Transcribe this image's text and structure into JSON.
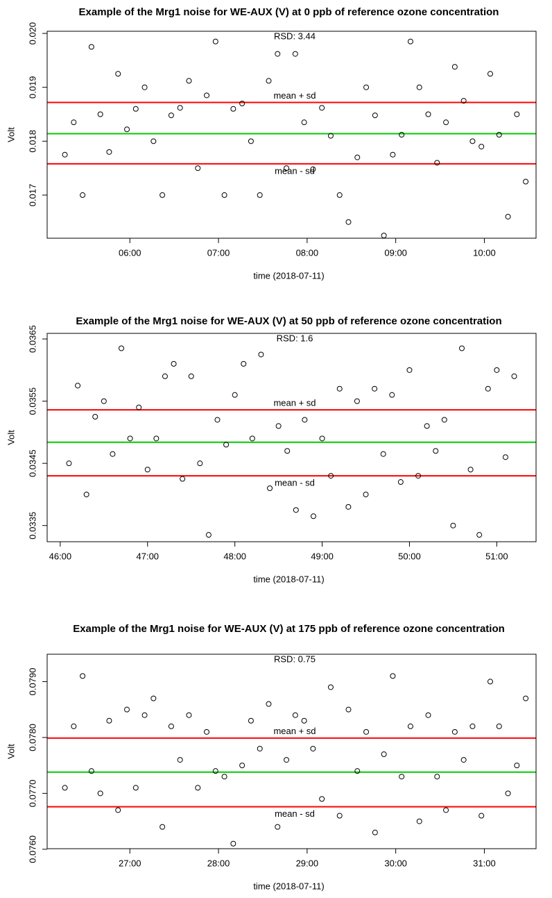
{
  "chart_data": [
    {
      "type": "scatter",
      "title": "Example of the Mrg1 noise for WE-AUX (V) at 0 ppb of reference ozone concentration",
      "x_label": "time (2018-07-11)",
      "y_label": "Volt",
      "annotation": "RSD: 3.44",
      "xlim": [
        "05:04",
        "10:35"
      ],
      "xticks": [
        "06:00",
        "07:00",
        "08:00",
        "09:00",
        "10:00"
      ],
      "ylim": [
        0.0162,
        0.02004
      ],
      "yticks": [
        0.017,
        0.018,
        0.019,
        {
          "value": 0.02,
          "label": "0.020"
        }
      ],
      "hlines": [
        {
          "name": "mean + sd",
          "value": 0.01872,
          "color": "#ff0000"
        },
        {
          "value": 0.01814,
          "color": "#00cc00"
        },
        {
          "name": "mean - sd",
          "value": 0.01758,
          "color": "#ff0000"
        }
      ],
      "series": [
        {
          "color": "#000000",
          "x": [
            "05:16",
            "05:22",
            "05:28",
            "05:34",
            "05:40",
            "05:46",
            "05:52",
            "05:58",
            "06:04",
            "06:10",
            "06:16",
            "06:22",
            "06:28",
            "06:34",
            "06:40",
            "06:46",
            "06:52",
            "06:58",
            "07:04",
            "07:10",
            "07:16",
            "07:22",
            "07:28",
            "07:34",
            "07:40",
            "07:46",
            "07:52",
            "07:58",
            "08:04",
            "08:10",
            "08:16",
            "08:22",
            "08:28",
            "08:34",
            "08:40",
            "08:46",
            "08:52",
            "08:58",
            "09:04",
            "09:10",
            "09:16",
            "09:22",
            "09:28",
            "09:34",
            "09:40",
            "09:46",
            "09:52",
            "09:58",
            "10:04",
            "10:10",
            "10:16",
            "10:22",
            "10:28"
          ],
          "values": [
            0.01775,
            0.01835,
            0.017,
            0.01975,
            0.0185,
            0.0178,
            0.01925,
            0.01822,
            0.0186,
            0.019,
            0.018,
            0.017,
            0.01848,
            0.01862,
            0.01912,
            0.0175,
            0.01885,
            0.01985,
            0.017,
            0.0186,
            0.0187,
            0.018,
            0.017,
            0.01912,
            0.01962,
            0.0175,
            0.01962,
            0.01835,
            0.01748,
            0.01862,
            0.0181,
            0.017,
            0.0165,
            0.0177,
            0.019,
            0.01848,
            0.01625,
            0.01775,
            0.01812,
            0.01985,
            0.019,
            0.0185,
            0.0176,
            0.01835,
            0.01938,
            0.01875,
            0.018,
            0.0179,
            0.01925,
            0.01812,
            0.0166,
            0.0185,
            0.01725
          ]
        }
      ]
    },
    {
      "type": "scatter",
      "title": "Example of the Mrg1 noise for WE-AUX (V) at 50 ppb of reference ozone concentration",
      "x_label": "time (2018-07-11)",
      "y_label": "Volt",
      "annotation": "RSD: 1.6",
      "xlim": [
        "45:51",
        "51:27"
      ],
      "xticks": [
        "46:00",
        "47:00",
        "48:00",
        "49:00",
        "50:00",
        "51:00"
      ],
      "ylim": [
        0.03324,
        0.03659
      ],
      "yticks": [
        0.0335,
        0.0345,
        0.0355,
        0.0365
      ],
      "hlines": [
        {
          "name": "mean + sd",
          "value": 0.03536,
          "color": "#ff0000"
        },
        {
          "value": 0.03484,
          "color": "#00cc00"
        },
        {
          "name": "mean - sd",
          "value": 0.0343,
          "color": "#ff0000"
        }
      ],
      "series": [
        {
          "color": "#000000",
          "x": [
            "46:06",
            "46:12",
            "46:18",
            "46:24",
            "46:30",
            "46:36",
            "46:42",
            "46:48",
            "46:54",
            "47:00",
            "47:06",
            "47:12",
            "47:18",
            "47:24",
            "47:30",
            "47:36",
            "47:42",
            "47:48",
            "47:54",
            "48:00",
            "48:06",
            "48:12",
            "48:18",
            "48:24",
            "48:30",
            "48:36",
            "48:42",
            "48:48",
            "48:54",
            "49:00",
            "49:06",
            "49:12",
            "49:18",
            "49:24",
            "49:30",
            "49:36",
            "49:42",
            "49:48",
            "49:54",
            "50:00",
            "50:06",
            "50:12",
            "50:18",
            "50:24",
            "50:30",
            "50:36",
            "50:42",
            "50:48",
            "50:54",
            "51:00",
            "51:06",
            "51:12"
          ],
          "values": [
            0.0345,
            0.03575,
            0.034,
            0.03525,
            0.0355,
            0.03465,
            0.03635,
            0.0349,
            0.0354,
            0.0344,
            0.0349,
            0.0359,
            0.0361,
            0.03425,
            0.0359,
            0.0345,
            0.03335,
            0.0352,
            0.0348,
            0.0356,
            0.0361,
            0.0349,
            0.03625,
            0.0341,
            0.0351,
            0.0347,
            0.03375,
            0.0352,
            0.03365,
            0.0349,
            0.0343,
            0.0357,
            0.0338,
            0.0355,
            0.034,
            0.0357,
            0.03465,
            0.0356,
            0.0342,
            0.036,
            0.0343,
            0.0351,
            0.0347,
            0.0352,
            0.0335,
            0.03635,
            0.0344,
            0.03335,
            0.0357,
            0.036,
            0.0346,
            0.0359
          ]
        }
      ]
    },
    {
      "type": "scatter",
      "title": "Example of the Mrg1 noise for WE-AUX (V) at 175 ppb of reference ozone concentration",
      "x_label": "time (2018-07-11)",
      "y_label": "Volt",
      "annotation": "RSD: 0.75",
      "xlim": [
        "26:04",
        "31:35"
      ],
      "xticks": [
        "27:00",
        "28:00",
        "29:00",
        "30:00",
        "31:00"
      ],
      "ylim": [
        0.07601,
        0.07949
      ],
      "yticks": [
        {
          "value": 0.076,
          "label": "0.0760"
        },
        {
          "value": 0.077,
          "label": "0.0770"
        },
        {
          "value": 0.078,
          "label": "0.0780"
        },
        {
          "value": 0.079,
          "label": "0.0790"
        }
      ],
      "hlines": [
        {
          "name": "mean + sd",
          "value": 0.07799,
          "color": "#ff0000"
        },
        {
          "value": 0.07738,
          "color": "#00cc00"
        },
        {
          "name": "mean - sd",
          "value": 0.07676,
          "color": "#ff0000"
        }
      ],
      "series": [
        {
          "color": "#000000",
          "x": [
            "26:16",
            "26:22",
            "26:28",
            "26:34",
            "26:40",
            "26:46",
            "26:52",
            "26:58",
            "27:04",
            "27:10",
            "27:16",
            "27:22",
            "27:28",
            "27:34",
            "27:40",
            "27:46",
            "27:52",
            "27:58",
            "28:04",
            "28:10",
            "28:16",
            "28:22",
            "28:28",
            "28:34",
            "28:40",
            "28:46",
            "28:52",
            "28:58",
            "29:04",
            "29:10",
            "29:16",
            "29:22",
            "29:28",
            "29:34",
            "29:40",
            "29:46",
            "29:52",
            "29:58",
            "30:04",
            "30:10",
            "30:16",
            "30:22",
            "30:28",
            "30:34",
            "30:40",
            "30:46",
            "30:52",
            "30:58",
            "31:04",
            "31:10",
            "31:16",
            "31:22",
            "31:28"
          ],
          "values": [
            0.0771,
            0.0782,
            0.0791,
            0.0774,
            0.077,
            0.0783,
            0.0767,
            0.0785,
            0.0771,
            0.0784,
            0.0787,
            0.0764,
            0.0782,
            0.0776,
            0.0784,
            0.0771,
            0.0781,
            0.0774,
            0.0773,
            0.0761,
            0.0775,
            0.0783,
            0.0778,
            0.0786,
            0.0764,
            0.0776,
            0.0784,
            0.0783,
            0.0778,
            0.0769,
            0.0789,
            0.0766,
            0.0785,
            0.0774,
            0.0781,
            0.0763,
            0.0777,
            0.0791,
            0.0773,
            0.0782,
            0.0765,
            0.0784,
            0.0773,
            0.0767,
            0.0781,
            0.0776,
            0.0782,
            0.0766,
            0.079,
            0.0782,
            0.077,
            0.0775,
            0.0787
          ]
        }
      ]
    }
  ]
}
